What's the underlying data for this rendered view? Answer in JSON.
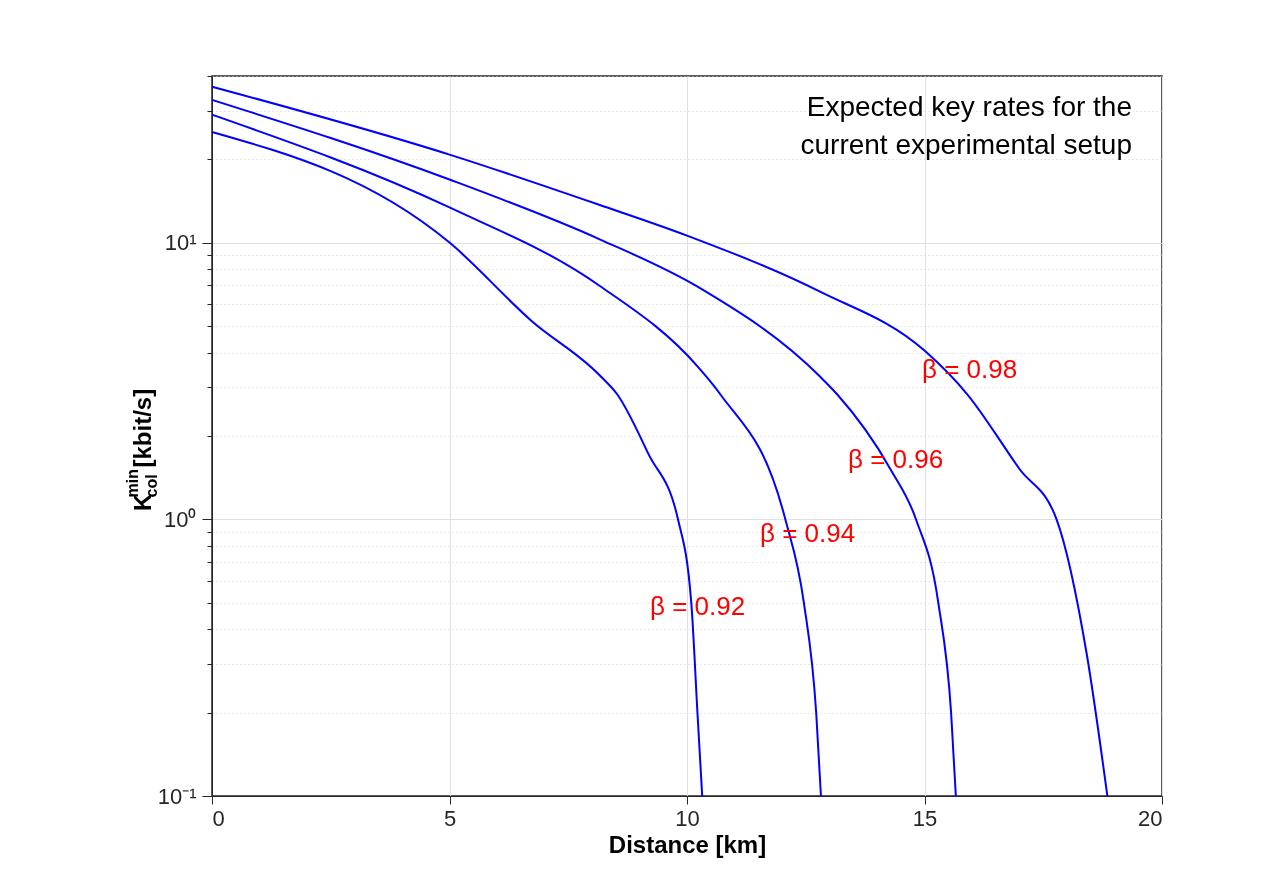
{
  "chart_data": {
    "type": "line",
    "xlabel": "Distance [km]",
    "ylabel": "K$^{min}$$_{col}$ [kbit/s]",
    "log": "y",
    "grid": true,
    "line_style": "solid",
    "marker": "none",
    "xlim": [
      0,
      20
    ],
    "xticks": [
      0,
      5,
      10,
      15,
      20
    ],
    "ylim": [
      0.1,
      40
    ],
    "yticks": [
      {
        "value": 0.1,
        "label": "10⁻¹"
      },
      {
        "value": 0.2,
        "label": null
      },
      {
        "value": 0.3,
        "label": null
      },
      {
        "value": 0.4,
        "label": null
      },
      {
        "value": 0.5,
        "label": null
      },
      {
        "value": 0.6,
        "label": null
      },
      {
        "value": 0.7,
        "label": null
      },
      {
        "value": 0.8,
        "label": null
      },
      {
        "value": 0.9,
        "label": null
      },
      {
        "value": 1,
        "label": "10⁰"
      },
      {
        "value": 2,
        "label": null
      },
      {
        "value": 3,
        "label": null
      },
      {
        "value": 4,
        "label": null
      },
      {
        "value": 5,
        "label": null
      },
      {
        "value": 6,
        "label": null
      },
      {
        "value": 7,
        "label": null
      },
      {
        "value": 8,
        "label": null
      },
      {
        "value": 9,
        "label": null
      },
      {
        "value": 10,
        "label": "10¹"
      },
      {
        "value": 20,
        "label": null
      },
      {
        "value": 30,
        "label": null
      },
      {
        "value": 40,
        "label": null
      }
    ],
    "series": [
      {
        "name": "β = 0.98",
        "color": "#0000ff",
        "x": [
          0,
          5,
          8.15,
          10,
          12.8,
          15,
          15.9,
          17.0,
          17.78,
          18.41,
          18.85
        ],
        "values": [
          36.6,
          20.8,
          13.7,
          10.6,
          6.65,
          4.07,
          2.83,
          1.52,
          1.0,
          0.33,
          0.1
        ]
      },
      {
        "name": "β = 0.96",
        "color": "#0000ff",
        "x": [
          0,
          5,
          8.15,
          10.24,
          12.8,
          13.16,
          14.28,
          14.82,
          15.29,
          15.56,
          15.66
        ],
        "values": [
          32.8,
          16.9,
          10.3,
          6.9,
          3.28,
          2.83,
          1.52,
          1.0,
          0.5,
          0.2,
          0.1
        ]
      },
      {
        "name": "β = 0.94",
        "color": "#0000ff",
        "x": [
          0,
          5,
          8.15,
          10.24,
          10.7,
          12.07,
          12.46,
          12.72,
          12.82
        ],
        "values": [
          29.0,
          13.4,
          7.0,
          3.54,
          2.83,
          1.0,
          0.5,
          0.2,
          0.1
        ]
      },
      {
        "name": "β = 0.92",
        "color": "#0000ff",
        "x": [
          0,
          5,
          6.74,
          8.15,
          8.53,
          9.19,
          9.81,
          10.09,
          10.22,
          10.32
        ],
        "values": [
          25.1,
          10.0,
          5.19,
          3.33,
          2.83,
          1.72,
          1.0,
          0.5,
          0.2,
          0.1
        ]
      }
    ],
    "annotations": [
      "Expected key rates for the\ncurrent experimental setup"
    ]
  }
}
